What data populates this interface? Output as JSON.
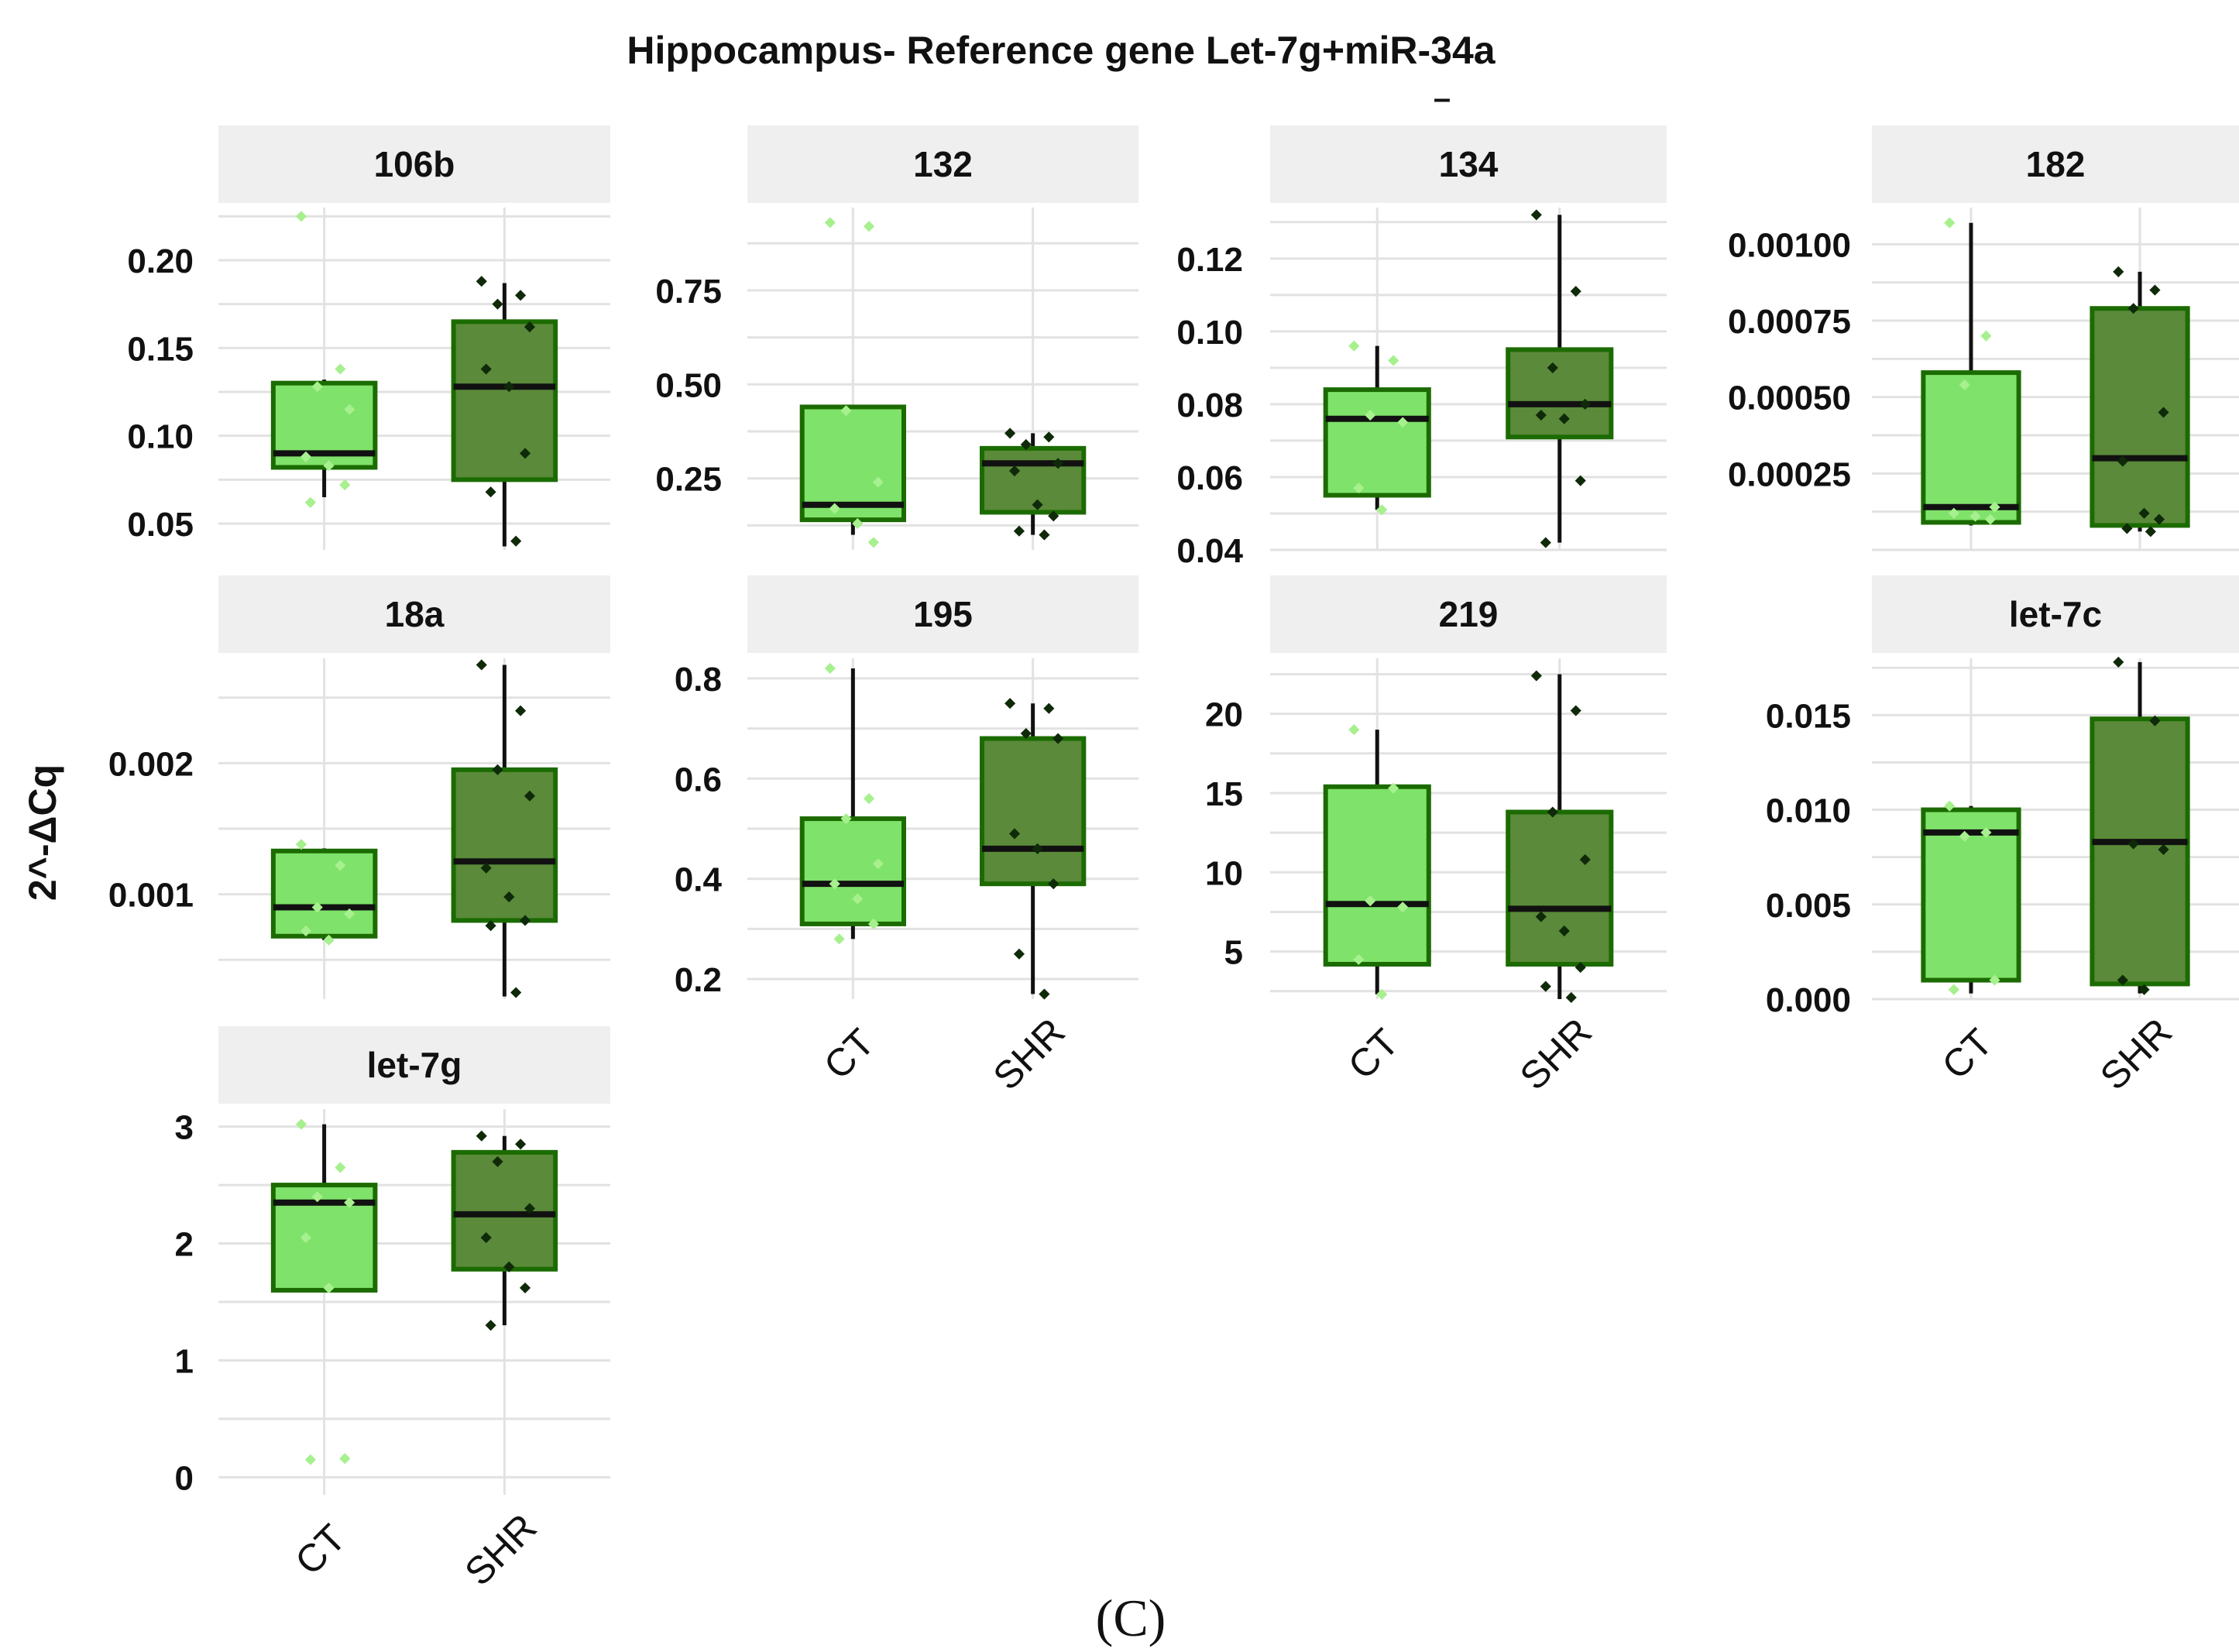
{
  "figure": {
    "title": "Hippocampus- Reference gene Let-7g+miR-34a",
    "title_mark": "–",
    "ylabel": "2^-ΔCq",
    "panel_label": "(C)"
  },
  "colors": {
    "ct_fill": "#7fe26a",
    "shr_fill": "#5a8a3a",
    "box_stroke": "#1b6b00",
    "strip_bg": "#efefef",
    "grid": "#e2e2e2",
    "ct_point": "#a6f08e",
    "shr_point": "#0f2a08"
  },
  "chart_data": [
    {
      "type": "boxplot",
      "facet": "106b",
      "categories": [
        "CT",
        "SHR"
      ],
      "ylim": [
        0.035,
        0.23
      ],
      "yticks": [
        {
          "v": 0.05,
          "label": "0.05"
        },
        {
          "v": 0.1,
          "label": "0.10"
        },
        {
          "v": 0.15,
          "label": "0.15"
        },
        {
          "v": 0.2,
          "label": "0.20"
        }
      ],
      "boxes": [
        {
          "group": "CT",
          "q1": 0.082,
          "median": 0.09,
          "q3": 0.13,
          "wlo": 0.065,
          "whi": 0.132,
          "points": [
            0.225,
            0.138,
            0.128,
            0.115,
            0.088,
            0.083,
            0.072,
            0.062
          ]
        },
        {
          "group": "SHR",
          "q1": 0.075,
          "median": 0.128,
          "q3": 0.165,
          "wlo": 0.037,
          "whi": 0.187,
          "points": [
            0.188,
            0.18,
            0.175,
            0.162,
            0.138,
            0.128,
            0.09,
            0.068,
            0.04
          ]
        }
      ]
    },
    {
      "type": "boxplot",
      "facet": "132",
      "categories": [
        "CT",
        "SHR"
      ],
      "ylim": [
        0.06,
        0.97
      ],
      "yticks": [
        {
          "v": 0.25,
          "label": "0.25"
        },
        {
          "v": 0.5,
          "label": "0.50"
        },
        {
          "v": 0.75,
          "label": "0.75"
        }
      ],
      "boxes": [
        {
          "group": "CT",
          "q1": 0.14,
          "median": 0.18,
          "q3": 0.44,
          "wlo": 0.1,
          "whi": 0.44,
          "points": [
            0.93,
            0.92,
            0.43,
            0.24,
            0.17,
            0.13,
            0.08
          ]
        },
        {
          "group": "SHR",
          "q1": 0.16,
          "median": 0.29,
          "q3": 0.33,
          "wlo": 0.1,
          "whi": 0.37,
          "points": [
            0.37,
            0.36,
            0.34,
            0.29,
            0.27,
            0.18,
            0.15,
            0.11,
            0.1
          ]
        }
      ]
    },
    {
      "type": "boxplot",
      "facet": "134",
      "categories": [
        "CT",
        "SHR"
      ],
      "ylim": [
        0.04,
        0.134
      ],
      "yticks": [
        {
          "v": 0.04,
          "label": "0.04"
        },
        {
          "v": 0.06,
          "label": "0.06"
        },
        {
          "v": 0.08,
          "label": "0.08"
        },
        {
          "v": 0.1,
          "label": "0.10"
        },
        {
          "v": 0.12,
          "label": "0.12"
        }
      ],
      "boxes": [
        {
          "group": "CT",
          "q1": 0.055,
          "median": 0.076,
          "q3": 0.084,
          "wlo": 0.051,
          "whi": 0.096,
          "points": [
            0.096,
            0.092,
            0.077,
            0.075,
            0.057,
            0.051
          ]
        },
        {
          "group": "SHR",
          "q1": 0.071,
          "median": 0.08,
          "q3": 0.095,
          "wlo": 0.042,
          "whi": 0.132,
          "points": [
            0.132,
            0.111,
            0.09,
            0.08,
            0.077,
            0.076,
            0.059,
            0.042
          ]
        }
      ]
    },
    {
      "type": "boxplot",
      "facet": "182",
      "categories": [
        "CT",
        "SHR"
      ],
      "ylim": [
        0.0,
        0.00112
      ],
      "yticks": [
        {
          "v": 0.00025,
          "label": "0.00025"
        },
        {
          "v": 0.0005,
          "label": "0.00050"
        },
        {
          "v": 0.00075,
          "label": "0.00075"
        },
        {
          "v": 0.001,
          "label": "0.00100"
        }
      ],
      "boxes": [
        {
          "group": "CT",
          "q1": 9e-05,
          "median": 0.00014,
          "q3": 0.00058,
          "wlo": 8e-05,
          "whi": 0.00107,
          "points": [
            0.00107,
            0.0007,
            0.00054,
            0.00014,
            0.00012,
            0.00011,
            0.0001
          ]
        },
        {
          "group": "SHR",
          "q1": 8e-05,
          "median": 0.0003,
          "q3": 0.00079,
          "wlo": 6e-05,
          "whi": 0.00091,
          "points": [
            0.00091,
            0.00085,
            0.00079,
            0.00045,
            0.00029,
            0.00012,
            0.0001,
            7e-05,
            6e-05
          ]
        }
      ]
    },
    {
      "type": "boxplot",
      "facet": "18a",
      "categories": [
        "CT",
        "SHR"
      ],
      "ylim": [
        0.0002,
        0.0028
      ],
      "yticks": [
        {
          "v": 0.001,
          "label": "0.001"
        },
        {
          "v": 0.002,
          "label": "0.002"
        }
      ],
      "boxes": [
        {
          "group": "CT",
          "q1": 0.00068,
          "median": 0.0009,
          "q3": 0.00133,
          "wlo": 0.00065,
          "whi": 0.00135,
          "points": [
            0.00138,
            0.00122,
            0.0009,
            0.00085,
            0.00072,
            0.00065
          ]
        },
        {
          "group": "SHR",
          "q1": 0.0008,
          "median": 0.00125,
          "q3": 0.00195,
          "wlo": 0.00022,
          "whi": 0.00275,
          "points": [
            0.00275,
            0.0024,
            0.00195,
            0.00175,
            0.0012,
            0.00098,
            0.0008,
            0.00076,
            0.00025
          ]
        }
      ]
    },
    {
      "type": "boxplot",
      "facet": "195",
      "categories": [
        "CT",
        "SHR"
      ],
      "ylim": [
        0.16,
        0.84
      ],
      "yticks": [
        {
          "v": 0.2,
          "label": "0.2"
        },
        {
          "v": 0.4,
          "label": "0.4"
        },
        {
          "v": 0.6,
          "label": "0.6"
        },
        {
          "v": 0.8,
          "label": "0.8"
        }
      ],
      "boxes": [
        {
          "group": "CT",
          "q1": 0.31,
          "median": 0.39,
          "q3": 0.52,
          "wlo": 0.28,
          "whi": 0.82,
          "points": [
            0.82,
            0.56,
            0.52,
            0.43,
            0.39,
            0.36,
            0.31,
            0.28
          ]
        },
        {
          "group": "SHR",
          "q1": 0.39,
          "median": 0.46,
          "q3": 0.68,
          "wlo": 0.17,
          "whi": 0.75,
          "points": [
            0.75,
            0.74,
            0.69,
            0.68,
            0.49,
            0.46,
            0.39,
            0.25,
            0.17
          ]
        }
      ]
    },
    {
      "type": "boxplot",
      "facet": "219",
      "categories": [
        "CT",
        "SHR"
      ],
      "ylim": [
        2.0,
        23.5
      ],
      "yticks": [
        {
          "v": 5,
          "label": "5"
        },
        {
          "v": 10,
          "label": "10"
        },
        {
          "v": 15,
          "label": "15"
        },
        {
          "v": 20,
          "label": "20"
        }
      ],
      "boxes": [
        {
          "group": "CT",
          "q1": 4.2,
          "median": 8.0,
          "q3": 15.4,
          "wlo": 2.3,
          "whi": 19.0,
          "points": [
            19.0,
            15.3,
            8.2,
            7.8,
            4.5,
            2.3
          ]
        },
        {
          "group": "SHR",
          "q1": 4.2,
          "median": 7.7,
          "q3": 13.8,
          "wlo": 2.0,
          "whi": 22.5,
          "points": [
            22.4,
            20.2,
            13.8,
            10.8,
            7.2,
            6.3,
            4.0,
            2.8,
            2.1
          ]
        }
      ]
    },
    {
      "type": "boxplot",
      "facet": "let-7c",
      "categories": [
        "CT",
        "SHR"
      ],
      "ylim": [
        0.0,
        0.018
      ],
      "yticks": [
        {
          "v": 0.0,
          "label": "0.000"
        },
        {
          "v": 0.005,
          "label": "0.005"
        },
        {
          "v": 0.01,
          "label": "0.010"
        },
        {
          "v": 0.015,
          "label": "0.015"
        }
      ],
      "boxes": [
        {
          "group": "CT",
          "q1": 0.001,
          "median": 0.0088,
          "q3": 0.01,
          "wlo": 0.0003,
          "whi": 0.0102,
          "points": [
            0.0102,
            0.0088,
            0.0086,
            0.001,
            0.0005
          ]
        },
        {
          "group": "SHR",
          "q1": 0.0008,
          "median": 0.0083,
          "q3": 0.0148,
          "wlo": 0.0003,
          "whi": 0.0178,
          "points": [
            0.0178,
            0.0147,
            0.0082,
            0.0079,
            0.001,
            0.0005
          ]
        }
      ]
    },
    {
      "type": "boxplot",
      "facet": "let-7g",
      "categories": [
        "CT",
        "SHR"
      ],
      "ylim": [
        -0.15,
        3.15
      ],
      "yticks": [
        {
          "v": 0,
          "label": "0"
        },
        {
          "v": 1,
          "label": "1"
        },
        {
          "v": 2,
          "label": "2"
        },
        {
          "v": 3,
          "label": "3"
        }
      ],
      "boxes": [
        {
          "group": "CT",
          "q1": 1.6,
          "median": 2.35,
          "q3": 2.5,
          "wlo": 1.6,
          "whi": 3.02,
          "points": [
            3.02,
            2.65,
            2.4,
            2.35,
            2.05,
            1.62,
            0.16,
            0.15
          ]
        },
        {
          "group": "SHR",
          "q1": 1.78,
          "median": 2.25,
          "q3": 2.78,
          "wlo": 1.3,
          "whi": 2.92,
          "points": [
            2.92,
            2.85,
            2.7,
            2.3,
            2.05,
            1.8,
            1.62,
            1.3
          ]
        }
      ]
    }
  ]
}
